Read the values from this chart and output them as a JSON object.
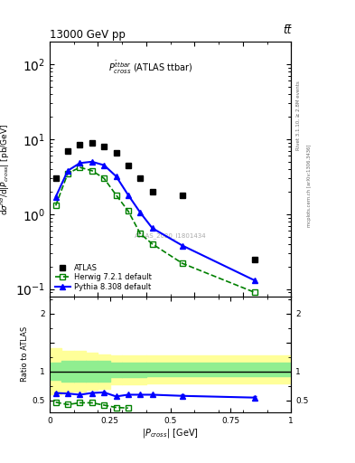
{
  "title_top": "13000 GeV pp",
  "title_top_right": "tt̅",
  "panel_label": "$P^{\\bar{t}tbar}_{cross}$ (ATLAS ttbar)",
  "watermark": "ATLAS_2020_I1801434",
  "right_label_top": "Rivet 3.1.10, ≥ 2.8M events",
  "right_label_bottom": "mcplots.cern.ch [arXiv:1306.3436]",
  "ylabel_main": "d$\\sigma^{nd}$/d$|P_{cross}|$ [pb/GeV]",
  "ylabel_ratio": "Ratio to ATLAS",
  "xlabel": "$|P_{cross}|$ [GeV]",
  "xlim": [
    0,
    1.0
  ],
  "ylim_main": [
    0.08,
    200
  ],
  "ylim_ratio": [
    0.3,
    2.3
  ],
  "atlas_x": [
    0.025,
    0.075,
    0.125,
    0.175,
    0.225,
    0.275,
    0.325,
    0.375,
    0.425,
    0.55,
    0.85
  ],
  "atlas_y": [
    3.0,
    7.0,
    8.5,
    9.0,
    8.0,
    6.5,
    4.5,
    3.0,
    2.0,
    1.8,
    0.25
  ],
  "herwig_x": [
    0.025,
    0.075,
    0.125,
    0.175,
    0.225,
    0.275,
    0.325,
    0.375,
    0.425,
    0.55,
    0.85
  ],
  "herwig_y": [
    1.3,
    3.5,
    4.2,
    3.8,
    3.0,
    1.8,
    1.1,
    0.55,
    0.4,
    0.22,
    0.09
  ],
  "pythia_x": [
    0.025,
    0.075,
    0.125,
    0.175,
    0.225,
    0.275,
    0.325,
    0.375,
    0.425,
    0.55,
    0.85
  ],
  "pythia_y": [
    1.7,
    3.8,
    4.8,
    5.0,
    4.5,
    3.2,
    1.8,
    1.05,
    0.65,
    0.38,
    0.13
  ],
  "herwig_ratio_x": [
    0.025,
    0.075,
    0.125,
    0.175,
    0.225,
    0.275,
    0.325
  ],
  "herwig_ratio_y": [
    0.47,
    0.43,
    0.46,
    0.46,
    0.42,
    0.38,
    0.37
  ],
  "pythia_ratio_x": [
    0.025,
    0.075,
    0.125,
    0.175,
    0.225,
    0.275,
    0.325,
    0.375,
    0.425,
    0.55,
    0.85
  ],
  "pythia_ratio_y": [
    0.63,
    0.62,
    0.6,
    0.63,
    0.64,
    0.57,
    0.6,
    0.6,
    0.6,
    0.58,
    0.55
  ],
  "pythia_ratio_err": [
    0.01,
    0.01,
    0.01,
    0.01,
    0.01,
    0.01,
    0.01,
    0.01,
    0.015,
    0.02,
    0.03
  ],
  "band_edges": [
    0.0,
    0.05,
    0.1,
    0.15,
    0.2,
    0.25,
    0.3,
    0.4,
    1.0
  ],
  "band_green_lo": [
    0.85,
    0.82,
    0.82,
    0.82,
    0.82,
    0.9,
    0.9,
    0.92,
    0.92
  ],
  "band_green_hi": [
    1.15,
    1.18,
    1.18,
    1.18,
    1.18,
    1.15,
    1.15,
    1.15,
    1.15
  ],
  "band_yellow_lo": [
    0.6,
    0.65,
    0.65,
    0.68,
    0.7,
    0.78,
    0.78,
    0.8,
    0.8
  ],
  "band_yellow_hi": [
    1.4,
    1.35,
    1.35,
    1.32,
    1.3,
    1.28,
    1.28,
    1.28,
    1.28
  ],
  "atlas_color": "#000000",
  "herwig_color": "#008000",
  "pythia_color": "#0000ff",
  "green_band_color": "#90ee90",
  "yellow_band_color": "#ffff99"
}
